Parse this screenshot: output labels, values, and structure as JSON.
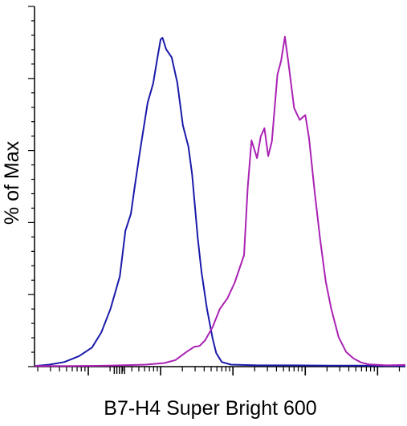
{
  "chart_data": {
    "type": "line",
    "title": "",
    "xlabel": "B7-H4 Super Bright 600",
    "ylabel": "% of Max",
    "x_scale": "log",
    "tick_labels_printed": false,
    "grid": false,
    "ylim": [
      0,
      100
    ],
    "series": [
      {
        "color": "#1a1aaa",
        "points": [
          [
            0.0,
            0.2
          ],
          [
            0.04,
            0.6
          ],
          [
            0.08,
            1.4
          ],
          [
            0.12,
            3.2
          ],
          [
            0.155,
            5.8
          ],
          [
            0.18,
            10.4
          ],
          [
            0.205,
            17.6
          ],
          [
            0.23,
            27.5
          ],
          [
            0.245,
            41.3
          ],
          [
            0.26,
            46.5
          ],
          [
            0.27,
            54.5
          ],
          [
            0.285,
            66.0
          ],
          [
            0.305,
            80.2
          ],
          [
            0.32,
            86.1
          ],
          [
            0.33,
            93.0
          ],
          [
            0.34,
            99.5
          ],
          [
            0.345,
            100.0
          ],
          [
            0.355,
            96.5
          ],
          [
            0.37,
            94.0
          ],
          [
            0.385,
            86.3
          ],
          [
            0.4,
            73.4
          ],
          [
            0.415,
            66.9
          ],
          [
            0.425,
            58.5
          ],
          [
            0.44,
            39.2
          ],
          [
            0.45,
            29.0
          ],
          [
            0.465,
            17.6
          ],
          [
            0.48,
            8.6
          ],
          [
            0.49,
            4.1
          ],
          [
            0.505,
            1.4
          ],
          [
            0.53,
            0.6
          ],
          [
            0.6,
            0.4
          ],
          [
            0.7,
            0.4
          ],
          [
            0.8,
            0.3
          ],
          [
            0.9,
            0.3
          ],
          [
            1.0,
            0.2
          ]
        ]
      },
      {
        "color": "#aa22b4",
        "points": [
          [
            0.0,
            0.2
          ],
          [
            0.1,
            0.2
          ],
          [
            0.2,
            0.3
          ],
          [
            0.3,
            0.6
          ],
          [
            0.35,
            1.1
          ],
          [
            0.38,
            2.0
          ],
          [
            0.41,
            4.5
          ],
          [
            0.43,
            6.0
          ],
          [
            0.445,
            6.3
          ],
          [
            0.46,
            8.0
          ],
          [
            0.48,
            12.0
          ],
          [
            0.5,
            17.6
          ],
          [
            0.52,
            20.7
          ],
          [
            0.54,
            25.6
          ],
          [
            0.555,
            30.6
          ],
          [
            0.565,
            33.9
          ],
          [
            0.575,
            54.5
          ],
          [
            0.585,
            68.8
          ],
          [
            0.6,
            63.4
          ],
          [
            0.61,
            70.0
          ],
          [
            0.62,
            72.5
          ],
          [
            0.63,
            64.0
          ],
          [
            0.64,
            68.5
          ],
          [
            0.655,
            88.8
          ],
          [
            0.665,
            93.0
          ],
          [
            0.675,
            100.3
          ],
          [
            0.685,
            92.0
          ],
          [
            0.7,
            78.6
          ],
          [
            0.715,
            75.0
          ],
          [
            0.73,
            76.5
          ],
          [
            0.74,
            69.6
          ],
          [
            0.755,
            53.5
          ],
          [
            0.77,
            38.9
          ],
          [
            0.785,
            26.0
          ],
          [
            0.8,
            17.6
          ],
          [
            0.82,
            9.0
          ],
          [
            0.84,
            4.5
          ],
          [
            0.86,
            2.5
          ],
          [
            0.88,
            1.3
          ],
          [
            0.9,
            0.7
          ],
          [
            0.95,
            0.4
          ],
          [
            1.0,
            0.5
          ]
        ]
      }
    ]
  }
}
